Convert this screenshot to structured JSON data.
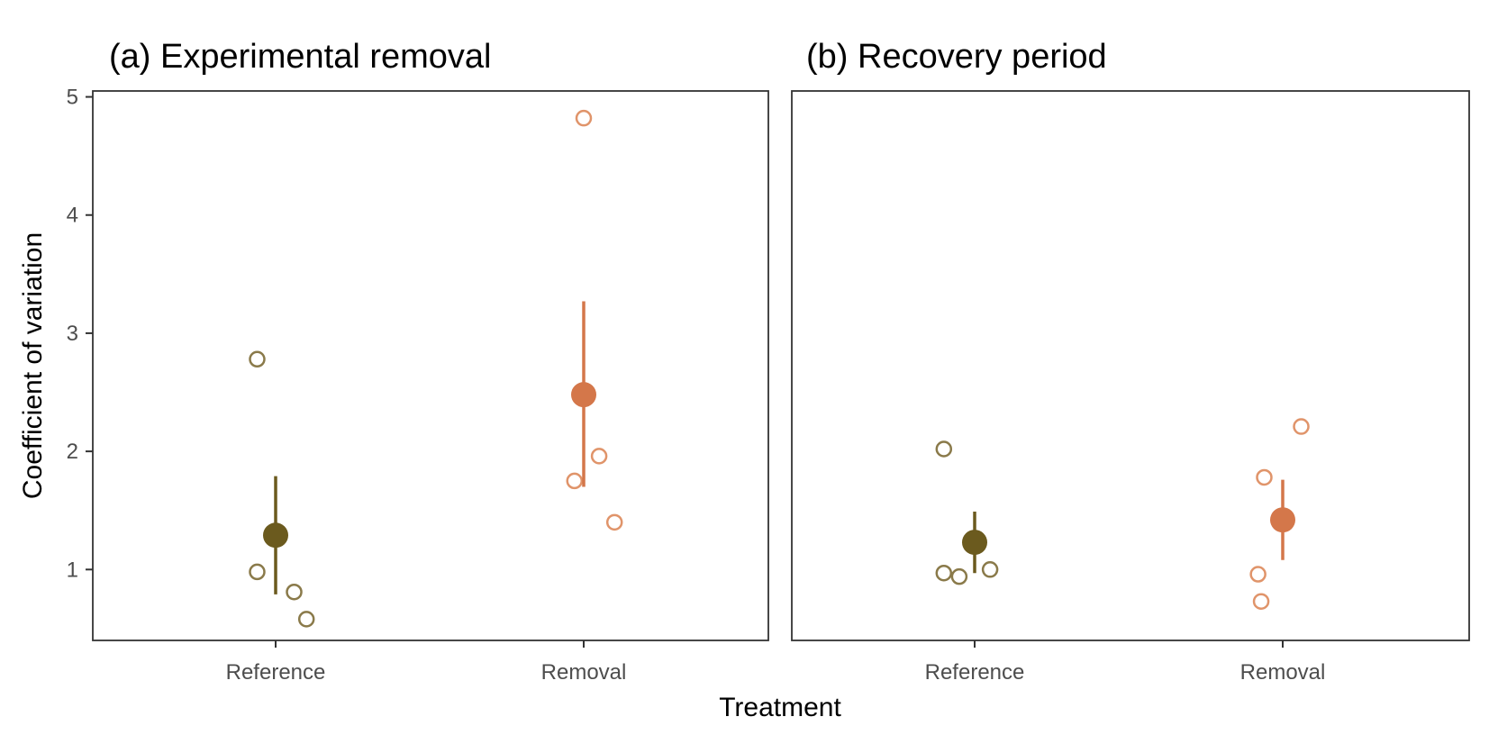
{
  "chart_data": {
    "type": "scatter",
    "xlabel": "Treatment",
    "ylabel": "Coefficient of variation",
    "categories": [
      "Reference",
      "Removal"
    ],
    "ylim": [
      0.4,
      5.05
    ],
    "yticks": [
      1,
      2,
      3,
      4,
      5
    ],
    "grid": false,
    "legend": "none",
    "colors": {
      "Reference": "#6b5a1e",
      "Reference_points": "#8a7a4a",
      "Removal": "#d4774a",
      "Removal_points": "#e0946a"
    },
    "panels": [
      {
        "title": "(a) Experimental removal",
        "groups": [
          {
            "category": "Reference",
            "points": [
              2.78,
              0.98,
              0.81,
              0.58
            ],
            "point_jitter": [
              -0.06,
              -0.06,
              0.06,
              0.1
            ],
            "mean": 1.29,
            "lower": 0.79,
            "upper": 1.79
          },
          {
            "category": "Removal",
            "points": [
              4.82,
              1.96,
              1.75,
              1.4
            ],
            "point_jitter": [
              0.0,
              0.05,
              -0.03,
              0.1
            ],
            "mean": 2.48,
            "lower": 1.7,
            "upper": 3.27
          }
        ]
      },
      {
        "title": "(b) Recovery period",
        "groups": [
          {
            "category": "Reference",
            "points": [
              2.02,
              0.97,
              0.94,
              1.0
            ],
            "point_jitter": [
              -0.1,
              -0.1,
              -0.05,
              0.05
            ],
            "mean": 1.23,
            "lower": 0.97,
            "upper": 1.49
          },
          {
            "category": "Removal",
            "points": [
              2.21,
              1.78,
              0.96,
              0.73
            ],
            "point_jitter": [
              0.06,
              -0.06,
              -0.08,
              -0.07
            ],
            "mean": 1.42,
            "lower": 1.08,
            "upper": 1.76
          }
        ]
      }
    ]
  }
}
